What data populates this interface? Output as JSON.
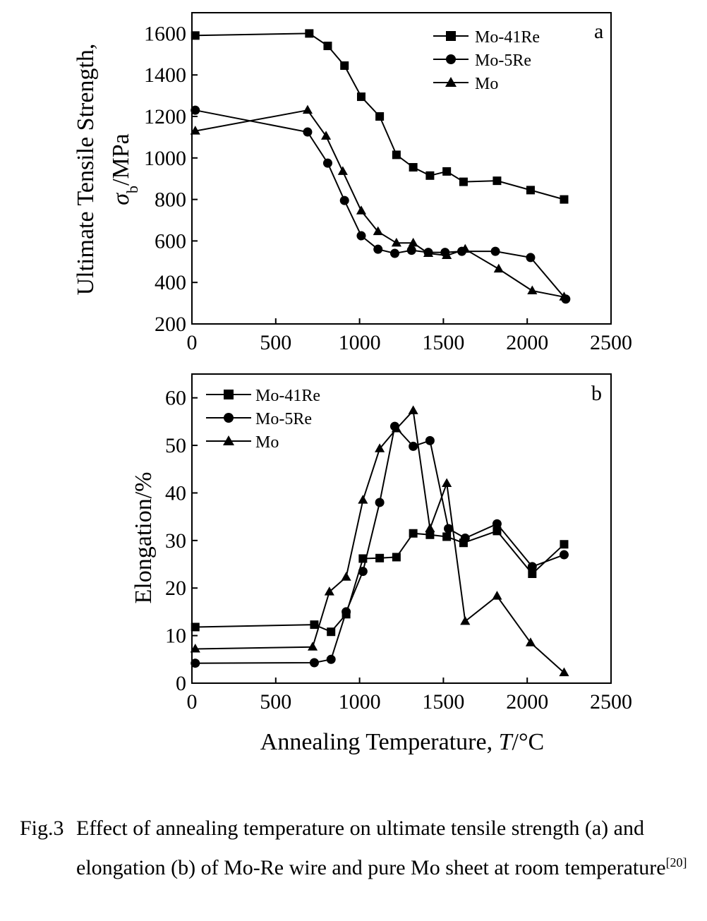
{
  "chart_data": [
    {
      "type": "line",
      "panel_label": "a",
      "ylabel_line1": "Ultimate Tensile Strength,",
      "ylabel_symbol": "σ",
      "ylabel_subscript": "b",
      "ylabel_unit": "/MPa",
      "xlim": [
        0,
        2500
      ],
      "ylim": [
        200,
        1700
      ],
      "xticks": [
        0,
        500,
        1000,
        1500,
        2000,
        2500
      ],
      "yticks": [
        200,
        400,
        600,
        800,
        1000,
        1200,
        1400,
        1600
      ],
      "legend_position": "top-right",
      "series": [
        {
          "name": "Mo-41Re",
          "marker": "square",
          "x": [
            20,
            700,
            810,
            910,
            1010,
            1120,
            1220,
            1320,
            1420,
            1520,
            1620,
            1820,
            2020,
            2220
          ],
          "y": [
            1590,
            1600,
            1540,
            1445,
            1295,
            1200,
            1015,
            955,
            915,
            935,
            885,
            890,
            845,
            800
          ]
        },
        {
          "name": "Mo-5Re",
          "marker": "circle",
          "x": [
            20,
            690,
            810,
            910,
            1010,
            1110,
            1210,
            1310,
            1410,
            1510,
            1610,
            1810,
            2020,
            2230
          ],
          "y": [
            1230,
            1125,
            975,
            795,
            625,
            560,
            540,
            555,
            545,
            545,
            550,
            550,
            520,
            320
          ]
        },
        {
          "name": "Mo",
          "marker": "triangle",
          "x": [
            20,
            690,
            800,
            900,
            1010,
            1110,
            1220,
            1320,
            1410,
            1520,
            1630,
            1830,
            2030,
            2220
          ],
          "y": [
            1130,
            1230,
            1105,
            935,
            745,
            645,
            590,
            590,
            540,
            530,
            560,
            465,
            360,
            330
          ]
        }
      ]
    },
    {
      "type": "line",
      "panel_label": "b",
      "ylabel": "Elongation/%",
      "xlabel_prefix": "Annealing Temperature, ",
      "xlabel_var": "T",
      "xlabel_unit": "/°C",
      "xlim": [
        0,
        2500
      ],
      "ylim": [
        0,
        65
      ],
      "xticks": [
        0,
        500,
        1000,
        1500,
        2000,
        2500
      ],
      "yticks": [
        0,
        10,
        20,
        30,
        40,
        50,
        60
      ],
      "legend_position": "top-left",
      "series": [
        {
          "name": "Mo-41Re",
          "marker": "square",
          "x": [
            20,
            730,
            830,
            920,
            1020,
            1120,
            1220,
            1320,
            1420,
            1520,
            1620,
            1820,
            2030,
            2220
          ],
          "y": [
            11.8,
            12.3,
            10.8,
            14.5,
            26.2,
            26.3,
            26.5,
            31.5,
            31.2,
            30.8,
            29.5,
            32.0,
            23.0,
            29.2
          ]
        },
        {
          "name": "Mo-5Re",
          "marker": "circle",
          "x": [
            20,
            730,
            830,
            920,
            1020,
            1120,
            1210,
            1320,
            1420,
            1530,
            1630,
            1820,
            2030,
            2220
          ],
          "y": [
            4.2,
            4.3,
            5.0,
            15.0,
            23.5,
            38.0,
            54.0,
            49.8,
            51.0,
            32.5,
            30.5,
            33.5,
            24.5,
            27.0
          ]
        },
        {
          "name": "Mo",
          "marker": "triangle",
          "x": [
            20,
            720,
            820,
            920,
            1020,
            1120,
            1220,
            1320,
            1420,
            1520,
            1630,
            1820,
            2020,
            2220
          ],
          "y": [
            7.2,
            7.6,
            19.2,
            22.3,
            38.5,
            49.3,
            53.5,
            57.3,
            32.5,
            42.0,
            13.0,
            18.3,
            8.5,
            2.2
          ]
        }
      ]
    }
  ],
  "caption": {
    "label": "Fig.3",
    "text": "Effect of annealing temperature on ultimate tensile strength (a) and elongation (b) of Mo-Re wire and pure Mo sheet at room temperature",
    "ref": "[20]"
  }
}
